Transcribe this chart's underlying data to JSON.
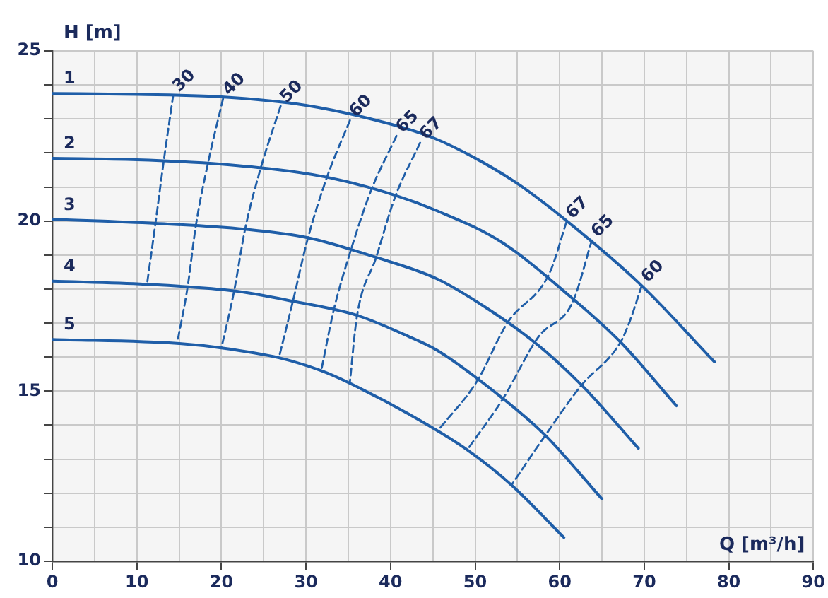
{
  "chart_data": {
    "type": "line",
    "xlabel": "Q [m³/h]",
    "ylabel": "H [m]",
    "xlim": [
      0,
      90
    ],
    "ylim": [
      10,
      25
    ],
    "xticks": [
      0,
      {
        "value": 5,
        "label": null
      },
      10,
      {
        "value": 15,
        "label": null
      },
      20,
      {
        "value": 25,
        "label": null
      },
      30,
      {
        "value": 35,
        "label": null
      },
      40,
      {
        "value": 45,
        "label": null
      },
      50,
      {
        "value": 55,
        "label": null
      },
      60,
      {
        "value": 65,
        "label": null
      },
      70,
      {
        "value": 75,
        "label": null
      },
      80,
      {
        "value": 85,
        "label": null
      },
      90
    ],
    "yticks": [
      10,
      {
        "value": 11,
        "label": null
      },
      {
        "value": 12,
        "label": null
      },
      {
        "value": 13,
        "label": null
      },
      {
        "value": 14,
        "label": null
      },
      15,
      {
        "value": 16,
        "label": null
      },
      {
        "value": 17,
        "label": null
      },
      {
        "value": 18,
        "label": null
      },
      {
        "value": 19,
        "label": null
      },
      20,
      {
        "value": 21,
        "label": null
      },
      {
        "value": 22,
        "label": null
      },
      {
        "value": 23,
        "label": null
      },
      {
        "value": 24,
        "label": null
      },
      25
    ],
    "grid": true,
    "legend": false,
    "marker": "none",
    "series": [
      {
        "name": "1",
        "color": "#1f5ea8",
        "line_style": "solid",
        "x": [
          0,
          10,
          20,
          30,
          40,
          45,
          50,
          55,
          61,
          69.7,
          78.3
        ],
        "values": [
          23.75,
          23.72,
          23.65,
          23.4,
          22.85,
          22.45,
          21.85,
          21.1,
          19.97,
          18.1,
          15.86
        ]
      },
      {
        "name": "2",
        "color": "#1f5ea8",
        "line_style": "solid",
        "x": [
          0,
          10,
          20,
          32.2,
          40.5,
          45.5,
          53,
          61.3,
          67.2,
          73.8
        ],
        "values": [
          21.84,
          21.8,
          21.67,
          21.3,
          20.76,
          20.3,
          19.4,
          17.77,
          16.44,
          14.57
        ]
      },
      {
        "name": "3",
        "color": "#1f5ea8",
        "line_style": "solid",
        "x": [
          0,
          12.2,
          22.7,
          30.2,
          38.3,
          45.5,
          51,
          57.2,
          62.7,
          69.3
        ],
        "values": [
          20.05,
          19.93,
          19.76,
          19.51,
          18.93,
          18.3,
          17.5,
          16.4,
          15.15,
          13.32
        ]
      },
      {
        "name": "4",
        "color": "#1f5ea8",
        "line_style": "solid",
        "x": [
          0,
          11,
          21.7,
          28.5,
          36,
          42.2,
          45.5,
          53.3,
          58.3,
          65
        ],
        "values": [
          18.23,
          18.14,
          17.94,
          17.64,
          17.23,
          16.6,
          16.2,
          14.78,
          13.7,
          11.83
        ]
      },
      {
        "name": "5",
        "color": "#1f5ea8",
        "line_style": "solid",
        "x": [
          0,
          15,
          20,
          26.8,
          31.8,
          35.2,
          42.2,
          48.8,
          54.3,
          60.5
        ],
        "values": [
          16.52,
          16.4,
          16.27,
          15.98,
          15.6,
          15.23,
          14.32,
          13.32,
          12.24,
          10.7
        ]
      },
      {
        "name": "30",
        "color": "#1f5ea8",
        "line_style": "dashed",
        "x": [
          14.3,
          13.2,
          12.2,
          11.2
        ],
        "values": [
          23.7,
          21.8,
          19.93,
          18.14
        ]
      },
      {
        "name": "40",
        "color": "#1f5ea8",
        "line_style": "dashed",
        "x": [
          20.2,
          18.5,
          17,
          16,
          14.8
        ],
        "values": [
          23.6,
          21.8,
          19.9,
          18.06,
          16.45
        ]
      },
      {
        "name": "50",
        "color": "#1f5ea8",
        "line_style": "dashed",
        "x": [
          27,
          24.7,
          22.8,
          21.5,
          20
        ],
        "values": [
          23.38,
          21.6,
          19.76,
          17.94,
          16.27
        ]
      },
      {
        "name": "60",
        "color": "#1f5ea8",
        "line_style": "dashed",
        "x": [
          35.2,
          32.5,
          30.2,
          28.5,
          26.8
        ],
        "values": [
          22.96,
          21.3,
          19.47,
          17.69,
          15.98
        ]
      },
      {
        "name": "65",
        "color": "#1f5ea8",
        "line_style": "dashed",
        "x": [
          40.7,
          37.7,
          35.3,
          33.3,
          31.8
        ],
        "values": [
          22.5,
          20.9,
          19.14,
          17.4,
          15.6
        ]
      },
      {
        "name": "67",
        "color": "#1f5ea8",
        "line_style": "dashed",
        "x": [
          43.5,
          40.5,
          38.3,
          36,
          35.2
        ],
        "values": [
          22.3,
          20.68,
          18.93,
          17.15,
          15.28
        ]
      },
      {
        "name": "67",
        "color": "#1f5ea8",
        "line_style": "dashed",
        "x": [
          60.8,
          58.8,
          53.8,
          50.2,
          45.8
        ],
        "values": [
          19.97,
          18.47,
          17.0,
          15.28,
          13.9
        ]
      },
      {
        "name": "65",
        "color": "#1f5ea8",
        "line_style": "dashed",
        "x": [
          63.8,
          61.5,
          57.5,
          53.3,
          49.2
        ],
        "values": [
          19.43,
          17.6,
          16.6,
          14.78,
          13.32
        ]
      },
      {
        "name": "60",
        "color": "#1f5ea8",
        "line_style": "dashed",
        "x": [
          69.7,
          68.3,
          67.2,
          62.5,
          58.3,
          54.3
        ],
        "values": [
          18.1,
          17.06,
          16.44,
          15.15,
          13.7,
          12.24
        ]
      }
    ]
  }
}
